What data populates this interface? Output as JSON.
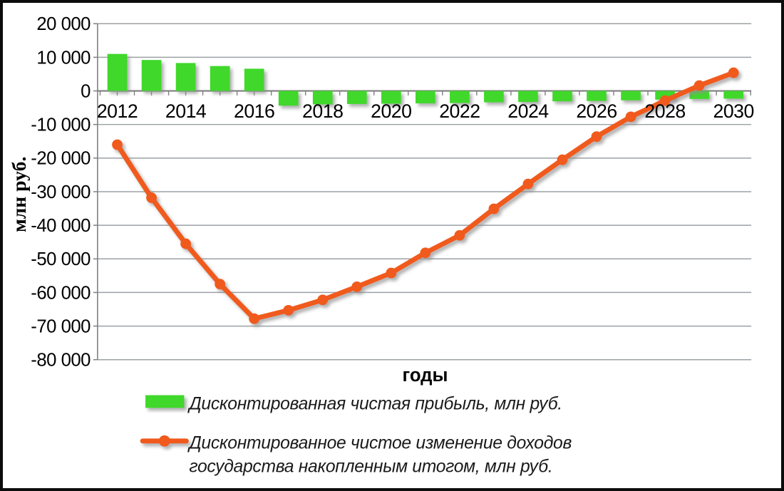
{
  "chart_data": {
    "type": "bar",
    "title": "",
    "xlabel": "годы",
    "ylabel": "млн руб.",
    "categories": [
      2012,
      2013,
      2014,
      2015,
      2016,
      2017,
      2018,
      2019,
      2020,
      2021,
      2022,
      2023,
      2024,
      2025,
      2026,
      2027,
      2028,
      2029,
      2030
    ],
    "series": [
      {
        "name": "Дисконтированная чистая прибыль, млн  руб.",
        "render": "bar",
        "color": "#3FD82A",
        "values": [
          11000,
          9200,
          8300,
          7400,
          6600,
          -4400,
          -4000,
          -3900,
          -3800,
          -3700,
          -3600,
          -3400,
          -3300,
          -3100,
          -3000,
          -2800,
          -2600,
          -2400,
          -2300
        ]
      },
      {
        "name": "Дисконтированное чистое изменение доходов государства накопленным итогом, млн  руб.",
        "render": "line",
        "color": "#F05A1E",
        "values": [
          -16000,
          -31800,
          -45500,
          -57500,
          -67800,
          -65300,
          -62200,
          -58300,
          -54200,
          -48200,
          -43000,
          -35100,
          -27700,
          -20500,
          -13600,
          -7700,
          -2900,
          1600,
          5400
        ]
      }
    ],
    "ylim": [
      -80000,
      20000
    ],
    "ytick_step": 10000,
    "ytick_values": [
      20000,
      10000,
      0,
      -10000,
      -20000,
      -30000,
      -40000,
      -50000,
      -60000,
      -70000,
      -80000
    ],
    "ytick_labels": [
      "20 000",
      "10 000",
      "0",
      "-10 000",
      "-20 000",
      "-30 000",
      "-40 000",
      "-50 000",
      "-60 000",
      "-70 000",
      "-80 000"
    ],
    "xtick_labels": [
      "2012",
      "2014",
      "2016",
      "2018",
      "2020",
      "2022",
      "2024",
      "2026",
      "2028",
      "2030"
    ],
    "xtick_label_step": 2,
    "grid": true,
    "legend_position": "bottom",
    "legend": {
      "item1_label": "Дисконтированная чистая прибыль, млн  руб.",
      "item2_line1": "Дисконтированное чистое изменение доходов",
      "item2_line2": "государства накопленным итогом, млн  руб."
    },
    "colors": {
      "bar_fill": "#3FD82A",
      "line_stroke": "#F05A1E",
      "gridline": "#9BA1A5",
      "axis_line": "#7F7F7F",
      "text": "#000000",
      "frame_border": "#0C0C0C",
      "background": "#FFFFFF"
    }
  }
}
